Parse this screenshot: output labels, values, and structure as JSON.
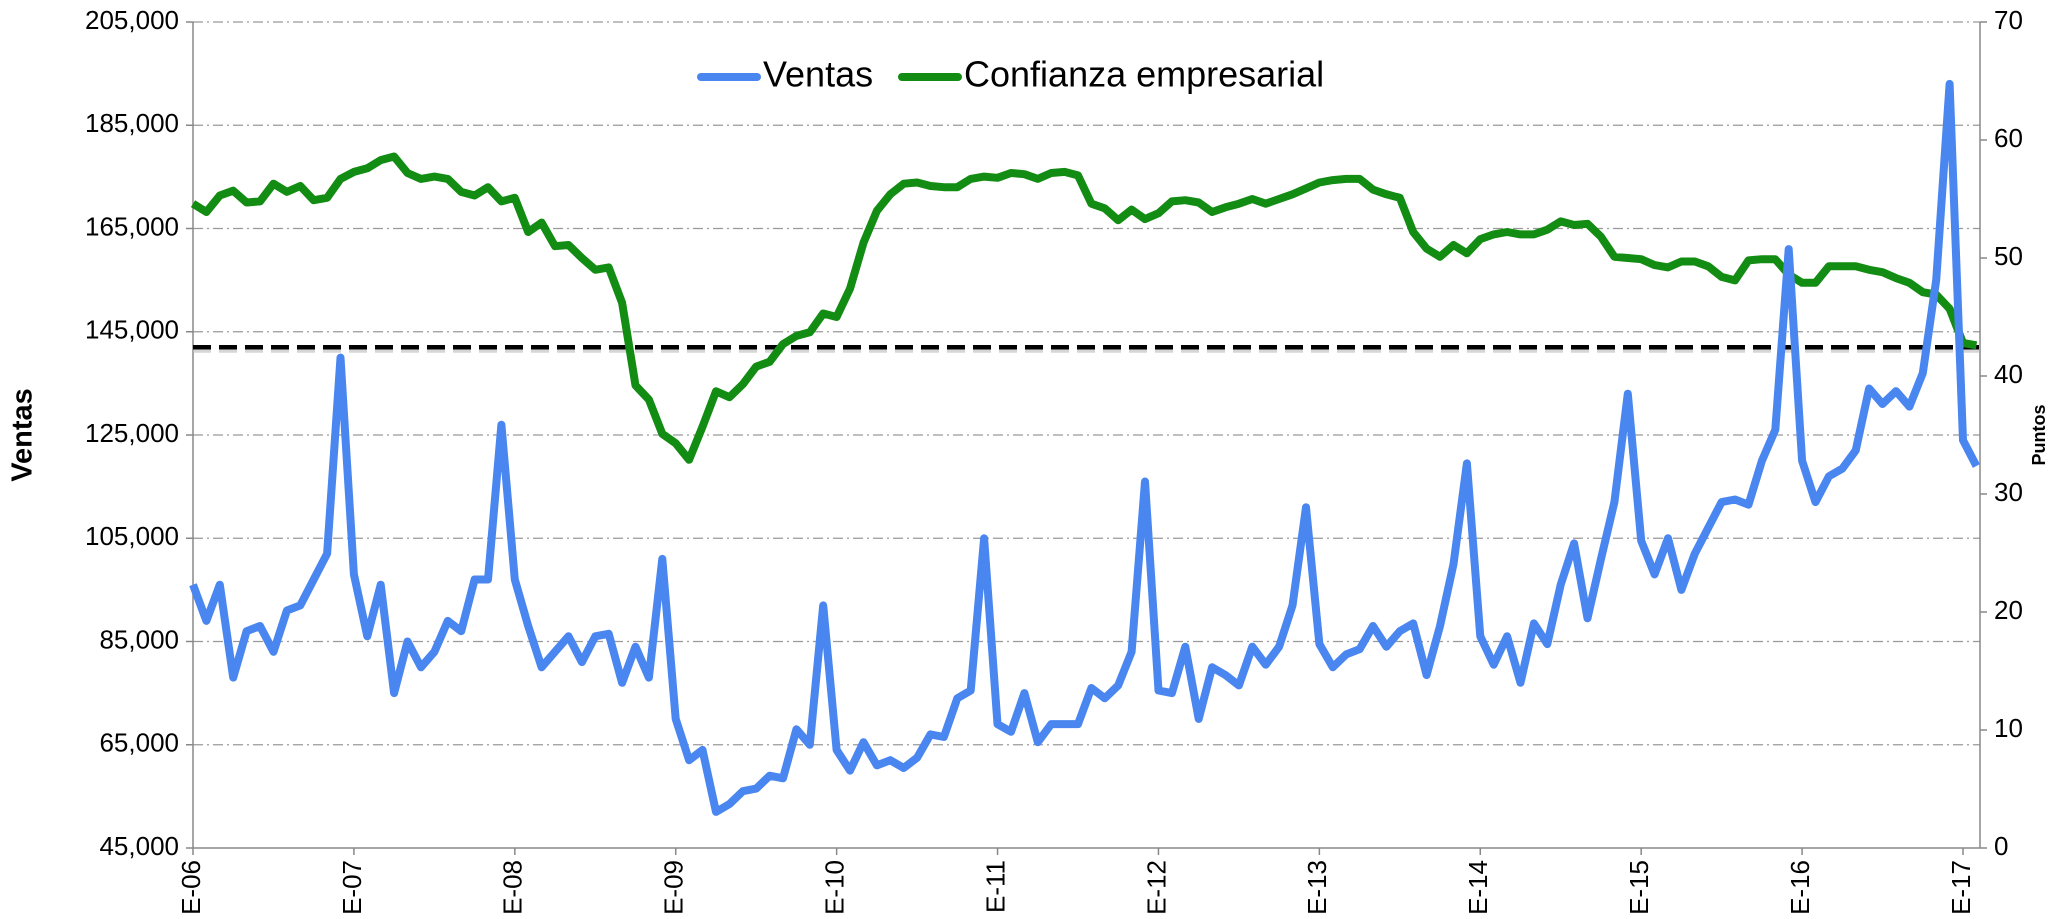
{
  "chart_data": {
    "type": "line",
    "legend": "top",
    "grid": true,
    "y_label": "Ventas",
    "y2_label": "Puntos",
    "reference_line": 142000,
    "categories": [
      "E-06",
      null,
      null,
      null,
      null,
      null,
      null,
      null,
      null,
      null,
      null,
      null,
      "E-07",
      null,
      null,
      null,
      null,
      null,
      null,
      null,
      null,
      null,
      null,
      null,
      "E-08",
      null,
      null,
      null,
      null,
      null,
      null,
      null,
      null,
      null,
      null,
      null,
      "E-09",
      null,
      null,
      null,
      null,
      null,
      null,
      null,
      null,
      null,
      null,
      null,
      "E-10",
      null,
      null,
      null,
      null,
      null,
      null,
      null,
      null,
      null,
      null,
      null,
      "E-11",
      null,
      null,
      null,
      null,
      null,
      null,
      null,
      null,
      null,
      null,
      null,
      "E-12",
      null,
      null,
      null,
      null,
      null,
      null,
      null,
      null,
      null,
      null,
      null,
      "E-13",
      null,
      null,
      null,
      null,
      null,
      null,
      null,
      null,
      null,
      null,
      null,
      "E-14",
      null,
      null,
      null,
      null,
      null,
      null,
      null,
      null,
      null,
      null,
      null,
      "E-15",
      null,
      null,
      null,
      null,
      null,
      null,
      null,
      null,
      null,
      null,
      null,
      "E-16",
      null,
      null,
      null,
      null,
      null,
      null,
      null,
      null,
      null,
      null,
      null,
      "E-17",
      null
    ],
    "ylim": [
      45000,
      205000
    ],
    "yticks": [
      {
        "value": 45000,
        "label": "45,000"
      },
      {
        "value": 65000,
        "label": "65,000"
      },
      {
        "value": 85000,
        "label": "85,000"
      },
      {
        "value": 105000,
        "label": "105,000"
      },
      {
        "value": 125000,
        "label": "125,000"
      },
      {
        "value": 145000,
        "label": "145,000"
      },
      {
        "value": 165000,
        "label": "165,000"
      },
      {
        "value": 185000,
        "label": "185,000"
      },
      {
        "value": 205000,
        "label": "205,000"
      }
    ],
    "y2lim": [
      0,
      70
    ],
    "y2ticks": [
      0,
      10,
      20,
      30,
      40,
      50,
      60,
      70
    ],
    "series": [
      {
        "name": "Ventas",
        "color": "#4a86f0",
        "values": [
          96000,
          89000,
          96000,
          78000,
          87000,
          88000,
          83000,
          91000,
          92000,
          97000,
          102000,
          140000,
          98000,
          86000,
          96000,
          75000,
          85000,
          80000,
          83000,
          89000,
          87000,
          97000,
          97000,
          127000,
          97000,
          88000,
          80000,
          83000,
          86000,
          81000,
          86000,
          86500,
          77000,
          84000,
          78000,
          101000,
          70000,
          62000,
          64000,
          52000,
          53500,
          56000,
          56500,
          59000,
          58500,
          68000,
          65000,
          92000,
          64000,
          60000,
          65500,
          61000,
          62000,
          60500,
          62500,
          67000,
          66500,
          74000,
          75500,
          105000,
          69000,
          67500,
          75000,
          65500,
          69000,
          69000,
          69000,
          76000,
          74000,
          76500,
          83000,
          116000,
          75500,
          75000,
          84000,
          70000,
          80000,
          78500,
          76500,
          84000,
          80500,
          84000,
          92000,
          111000,
          84500,
          80000,
          82500,
          83500,
          88000,
          84000,
          87000,
          88500,
          78500,
          88000,
          100000,
          119500,
          86000,
          80500,
          86000,
          77000,
          88500,
          84500,
          96000,
          104000,
          89500,
          101000,
          112000,
          133000,
          104500,
          98000,
          105000,
          95000,
          102000,
          107000,
          112000,
          112500,
          111500,
          120000,
          126000,
          161000,
          120000,
          112000,
          117000,
          118500,
          122000,
          134000,
          131000,
          133500,
          130500,
          137000,
          155000,
          193000,
          124000,
          119000
        ]
      },
      {
        "name": "Confianza empresarial",
        "color": "#128c12",
        "axis": "y2",
        "values": [
          54.6,
          53.9,
          55.3,
          55.7,
          54.7,
          54.8,
          56.3,
          55.6,
          56.1,
          54.9,
          55.1,
          56.7,
          57.3,
          57.6,
          58.3,
          58.6,
          57.2,
          56.7,
          56.9,
          56.7,
          55.6,
          55.3,
          56.0,
          54.8,
          55.1,
          52.2,
          53.0,
          51.0,
          51.1,
          50.0,
          49.0,
          49.2,
          46.2,
          39.2,
          38.0,
          35.1,
          34.3,
          32.9,
          35.7,
          38.7,
          38.2,
          39.3,
          40.8,
          41.2,
          42.7,
          43.4,
          43.7,
          45.3,
          45.0,
          47.4,
          51.3,
          54.0,
          55.4,
          56.3,
          56.4,
          56.1,
          56.0,
          56.0,
          56.7,
          56.9,
          56.8,
          57.2,
          57.1,
          56.7,
          57.2,
          57.3,
          57.0,
          54.6,
          54.2,
          53.2,
          54.1,
          53.3,
          53.8,
          54.8,
          54.9,
          54.7,
          53.9,
          54.3,
          54.6,
          55.0,
          54.6,
          55.0,
          55.4,
          55.9,
          56.4,
          56.6,
          56.7,
          56.7,
          55.8,
          55.4,
          55.1,
          52.2,
          50.8,
          50.1,
          51.1,
          50.4,
          51.6,
          52.0,
          52.2,
          52.0,
          52.0,
          52.4,
          53.1,
          52.8,
          52.9,
          51.8,
          50.1,
          50.0,
          49.9,
          49.4,
          49.2,
          49.7,
          49.7,
          49.3,
          48.4,
          48.1,
          49.8,
          49.9,
          49.9,
          48.6,
          47.9,
          47.9,
          49.3,
          49.3,
          49.3,
          49.0,
          48.8,
          48.3,
          47.9,
          47.1,
          46.9,
          45.7,
          42.8,
          42.6
        ]
      }
    ]
  }
}
